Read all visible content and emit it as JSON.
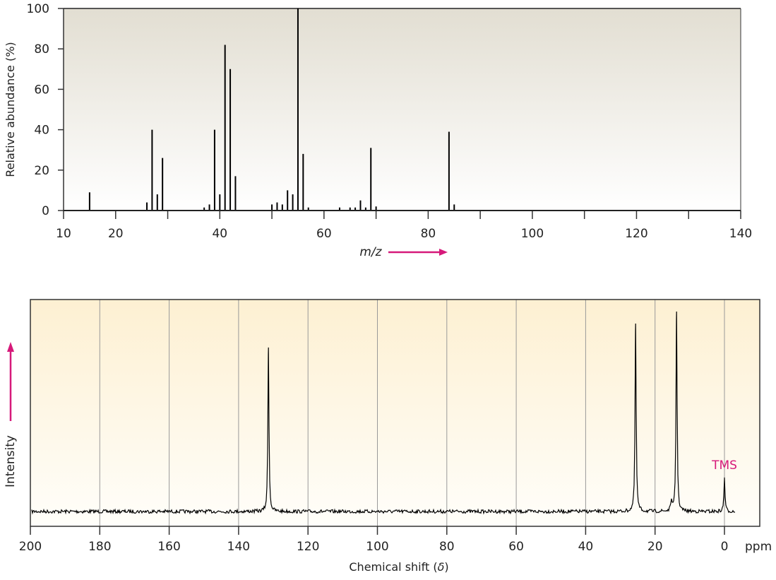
{
  "colors": {
    "accent": "#d6197a",
    "ms_bg_top": "#e2ded2",
    "ms_bg_bottom": "#ffffff",
    "nmr_bg_top": "#fdf0d2",
    "nmr_bg_bottom": "#fffefa"
  },
  "chart_data": [
    {
      "type": "bar",
      "title": "",
      "xlabel": "m/z",
      "ylabel": "Relative abundance (%)",
      "xlim": [
        10,
        140
      ],
      "ylim": [
        0,
        100
      ],
      "xticks": [
        10,
        20,
        40,
        60,
        80,
        100,
        120,
        140
      ],
      "yticks": [
        0,
        20,
        40,
        60,
        80,
        100
      ],
      "grid": false,
      "x": [
        15,
        26,
        27,
        28,
        29,
        37,
        38,
        39,
        40,
        41,
        42,
        43,
        50,
        51,
        52,
        53,
        54,
        55,
        56,
        57,
        63,
        65,
        66,
        67,
        68,
        69,
        70,
        84,
        85
      ],
      "values": [
        9,
        4,
        40,
        8,
        26,
        1.5,
        3,
        40,
        8,
        82,
        70,
        17,
        3,
        4,
        3,
        10,
        8,
        100,
        28,
        1.5,
        1.5,
        1.5,
        1.5,
        5,
        1.5,
        31,
        2,
        39,
        3
      ]
    },
    {
      "type": "line",
      "title": "",
      "xlabel": "Chemical shift (δ)",
      "xlabel_parts": [
        "Chemical shift (",
        "δ",
        ")"
      ],
      "ylabel": "Intensity",
      "x_unit": "ppm",
      "xlim": [
        200,
        -10
      ],
      "xticks": [
        200,
        180,
        160,
        140,
        120,
        100,
        80,
        60,
        40,
        20,
        0
      ],
      "grid": true,
      "peaks": [
        {
          "shift": 131.4,
          "relative_intensity": 82
        },
        {
          "shift": 25.6,
          "relative_intensity": 94
        },
        {
          "shift": 15.3,
          "relative_intensity": 6
        },
        {
          "shift": 13.8,
          "relative_intensity": 100
        },
        {
          "shift": 0,
          "relative_intensity": 17,
          "label": "TMS"
        }
      ]
    }
  ]
}
